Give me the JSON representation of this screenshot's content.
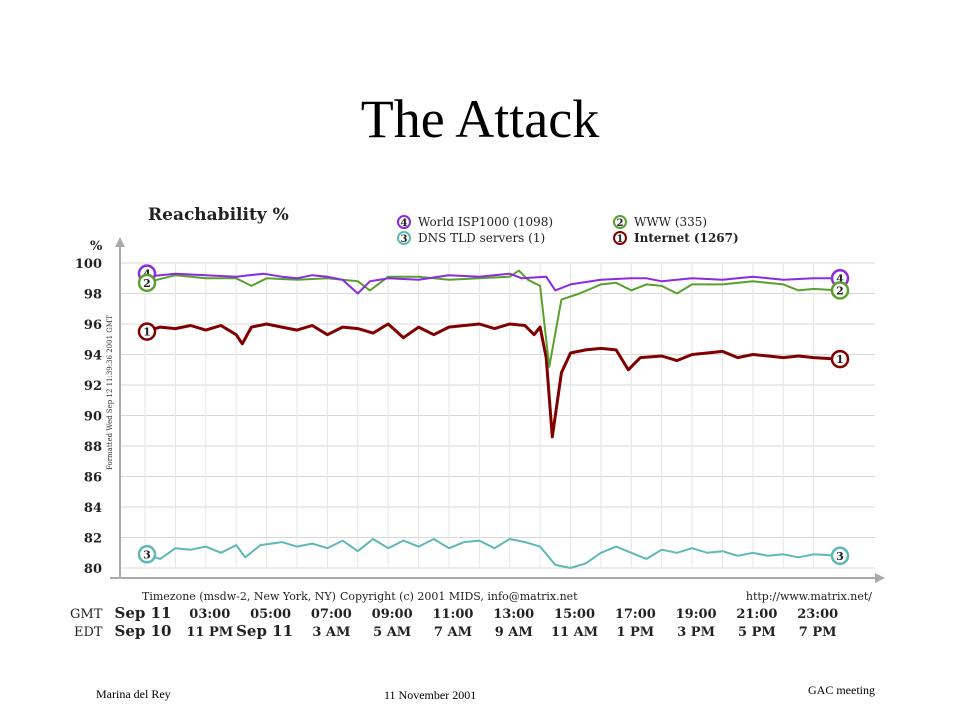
{
  "slide": {
    "title": "The Attack",
    "footer_left": "Marina del Rey",
    "footer_center": "11 November 2001",
    "footer_right": "GAC meeting"
  },
  "chart_data": {
    "type": "line",
    "title": "Reachability %",
    "ylabel": "%",
    "ylim": [
      80,
      100
    ],
    "yticks": [
      100,
      98,
      96,
      94,
      92,
      90,
      88,
      86,
      84,
      82,
      80
    ],
    "xlim": [
      1,
      23.8
    ],
    "vertical_note": "Formatted Wed Sep 12 11:39:36 2001 GMT",
    "timezone_note": "Timezone (msdw-2, New York, NY)",
    "copyright_note": "Copyright (c) 2001 MIDS, info@matrix.net",
    "url_note": "http://www.matrix.net/",
    "gmt_label": "GMT",
    "edt_label": "EDT",
    "gmt_ticks": [
      {
        "x": 1,
        "label": "Sep 11",
        "bold": true
      },
      {
        "x": 3,
        "label": "03:00"
      },
      {
        "x": 5,
        "label": "05:00"
      },
      {
        "x": 7,
        "label": "07:00"
      },
      {
        "x": 9,
        "label": "09:00"
      },
      {
        "x": 11,
        "label": "11:00"
      },
      {
        "x": 13,
        "label": "13:00"
      },
      {
        "x": 15,
        "label": "15:00"
      },
      {
        "x": 17,
        "label": "17:00"
      },
      {
        "x": 19,
        "label": "19:00"
      },
      {
        "x": 21,
        "label": "21:00"
      },
      {
        "x": 23,
        "label": "23:00"
      }
    ],
    "edt_ticks": [
      {
        "x": 1,
        "label": "Sep 10",
        "bold": true
      },
      {
        "x": 3,
        "label": "11 PM"
      },
      {
        "x": 5,
        "label": "Sep 11",
        "bold": true
      },
      {
        "x": 7,
        "label": "3 AM"
      },
      {
        "x": 9,
        "label": "5 AM"
      },
      {
        "x": 11,
        "label": "7 AM"
      },
      {
        "x": 13,
        "label": "9 AM"
      },
      {
        "x": 15,
        "label": "11 AM"
      },
      {
        "x": 17,
        "label": "1 PM"
      },
      {
        "x": 19,
        "label": "3 PM"
      },
      {
        "x": 21,
        "label": "5 PM"
      },
      {
        "x": 23,
        "label": "7 PM"
      }
    ],
    "series": [
      {
        "id": "4",
        "name": "World ISP1000 (1098)",
        "color": "#8a2be2",
        "marker_color": "#8a2be2",
        "points": [
          [
            1,
            99.1
          ],
          [
            2,
            99.3
          ],
          [
            3,
            99.2
          ],
          [
            4,
            99.1
          ],
          [
            4.9,
            99.3
          ],
          [
            5.5,
            99.1
          ],
          [
            6,
            99.0
          ],
          [
            6.5,
            99.2
          ],
          [
            7,
            99.1
          ],
          [
            7.5,
            98.9
          ],
          [
            8,
            98.0
          ],
          [
            8.4,
            98.8
          ],
          [
            9,
            99.0
          ],
          [
            10,
            98.9
          ],
          [
            11,
            99.2
          ],
          [
            12,
            99.1
          ],
          [
            13,
            99.3
          ],
          [
            13.4,
            99.0
          ],
          [
            14.2,
            99.1
          ],
          [
            14.5,
            98.2
          ],
          [
            15,
            98.6
          ],
          [
            16,
            98.9
          ],
          [
            17,
            99.0
          ],
          [
            17.5,
            99.0
          ],
          [
            18,
            98.8
          ],
          [
            19,
            99.0
          ],
          [
            20,
            98.9
          ],
          [
            21,
            99.1
          ],
          [
            22,
            98.9
          ],
          [
            23,
            99.0
          ],
          [
            23.8,
            99.0
          ]
        ]
      },
      {
        "id": "2",
        "name": "WWW (335)",
        "color": "#5aa02c",
        "marker_color": "#5aa02c",
        "points": [
          [
            1,
            98.7
          ],
          [
            2,
            99.2
          ],
          [
            3,
            99.0
          ],
          [
            4,
            99.0
          ],
          [
            4.5,
            98.5
          ],
          [
            5,
            99.0
          ],
          [
            6,
            98.9
          ],
          [
            7,
            99.0
          ],
          [
            8,
            98.8
          ],
          [
            8.4,
            98.2
          ],
          [
            9,
            99.1
          ],
          [
            10,
            99.1
          ],
          [
            11,
            98.9
          ],
          [
            12,
            99.0
          ],
          [
            13,
            99.1
          ],
          [
            13.3,
            99.5
          ],
          [
            13.6,
            98.9
          ],
          [
            14.0,
            98.5
          ],
          [
            14.3,
            93.2
          ],
          [
            14.7,
            97.6
          ],
          [
            15.3,
            98.0
          ],
          [
            16,
            98.6
          ],
          [
            16.5,
            98.7
          ],
          [
            17,
            98.2
          ],
          [
            17.5,
            98.6
          ],
          [
            18,
            98.5
          ],
          [
            18.5,
            98.0
          ],
          [
            19,
            98.6
          ],
          [
            20,
            98.6
          ],
          [
            21,
            98.8
          ],
          [
            22,
            98.6
          ],
          [
            22.5,
            98.2
          ],
          [
            23,
            98.3
          ],
          [
            23.8,
            98.2
          ]
        ]
      },
      {
        "id": "1",
        "name": "Internet (1267)",
        "color": "#800000",
        "marker_color": "#800000",
        "points": [
          [
            1,
            95.5
          ],
          [
            1.5,
            95.8
          ],
          [
            2,
            95.7
          ],
          [
            2.5,
            95.9
          ],
          [
            3,
            95.6
          ],
          [
            3.5,
            95.9
          ],
          [
            4,
            95.3
          ],
          [
            4.2,
            94.7
          ],
          [
            4.5,
            95.8
          ],
          [
            5,
            96.0
          ],
          [
            5.5,
            95.8
          ],
          [
            6,
            95.6
          ],
          [
            6.5,
            95.9
          ],
          [
            7,
            95.3
          ],
          [
            7.5,
            95.8
          ],
          [
            8,
            95.7
          ],
          [
            8.5,
            95.4
          ],
          [
            9,
            96.0
          ],
          [
            9.5,
            95.1
          ],
          [
            10,
            95.8
          ],
          [
            10.5,
            95.3
          ],
          [
            11,
            95.8
          ],
          [
            11.5,
            95.9
          ],
          [
            12,
            96.0
          ],
          [
            12.5,
            95.7
          ],
          [
            13,
            96.0
          ],
          [
            13.5,
            95.9
          ],
          [
            13.8,
            95.3
          ],
          [
            14.0,
            95.8
          ],
          [
            14.2,
            93.8
          ],
          [
            14.4,
            88.6
          ],
          [
            14.7,
            92.8
          ],
          [
            15,
            94.1
          ],
          [
            15.5,
            94.3
          ],
          [
            16,
            94.4
          ],
          [
            16.5,
            94.3
          ],
          [
            16.9,
            93.0
          ],
          [
            17.3,
            93.8
          ],
          [
            18,
            93.9
          ],
          [
            18.5,
            93.6
          ],
          [
            19,
            94.0
          ],
          [
            19.5,
            94.1
          ],
          [
            20,
            94.2
          ],
          [
            20.5,
            93.8
          ],
          [
            21,
            94.0
          ],
          [
            21.5,
            93.9
          ],
          [
            22,
            93.8
          ],
          [
            22.5,
            93.9
          ],
          [
            23,
            93.8
          ],
          [
            23.8,
            93.7
          ]
        ]
      },
      {
        "id": "3",
        "name": "DNS TLD servers (1)",
        "color": "#5fb8b8",
        "marker_color": "#5fb8b8",
        "points": [
          [
            1,
            80.9
          ],
          [
            1.5,
            80.6
          ],
          [
            2,
            81.3
          ],
          [
            2.5,
            81.2
          ],
          [
            3,
            81.4
          ],
          [
            3.5,
            81.0
          ],
          [
            4,
            81.5
          ],
          [
            4.3,
            80.7
          ],
          [
            4.8,
            81.5
          ],
          [
            5.5,
            81.7
          ],
          [
            6,
            81.4
          ],
          [
            6.5,
            81.6
          ],
          [
            7,
            81.3
          ],
          [
            7.5,
            81.8
          ],
          [
            8,
            81.1
          ],
          [
            8.5,
            81.9
          ],
          [
            9,
            81.3
          ],
          [
            9.5,
            81.8
          ],
          [
            10,
            81.4
          ],
          [
            10.5,
            81.9
          ],
          [
            11,
            81.3
          ],
          [
            11.5,
            81.7
          ],
          [
            12,
            81.8
          ],
          [
            12.5,
            81.3
          ],
          [
            13,
            81.9
          ],
          [
            13.5,
            81.7
          ],
          [
            14,
            81.4
          ],
          [
            14.5,
            80.2
          ],
          [
            15,
            80.0
          ],
          [
            15.5,
            80.3
          ],
          [
            16,
            81.0
          ],
          [
            16.5,
            81.4
          ],
          [
            17,
            81.0
          ],
          [
            17.5,
            80.6
          ],
          [
            18,
            81.2
          ],
          [
            18.5,
            81.0
          ],
          [
            19,
            81.3
          ],
          [
            19.5,
            81.0
          ],
          [
            20,
            81.1
          ],
          [
            20.5,
            80.8
          ],
          [
            21,
            81.0
          ],
          [
            21.5,
            80.8
          ],
          [
            22,
            80.9
          ],
          [
            22.5,
            80.7
          ],
          [
            23,
            80.9
          ],
          [
            23.8,
            80.8
          ]
        ]
      }
    ],
    "legend": [
      {
        "id": "4",
        "label": "World ISP1000 (1098)",
        "color": "#8a2be2"
      },
      {
        "id": "2",
        "label": "WWW (335)",
        "color": "#5aa02c"
      },
      {
        "id": "3",
        "label": "DNS TLD servers (1)",
        "color": "#5fb8b8"
      },
      {
        "id": "1",
        "label": "Internet (1267)",
        "color": "#800000",
        "bold": true
      }
    ]
  }
}
